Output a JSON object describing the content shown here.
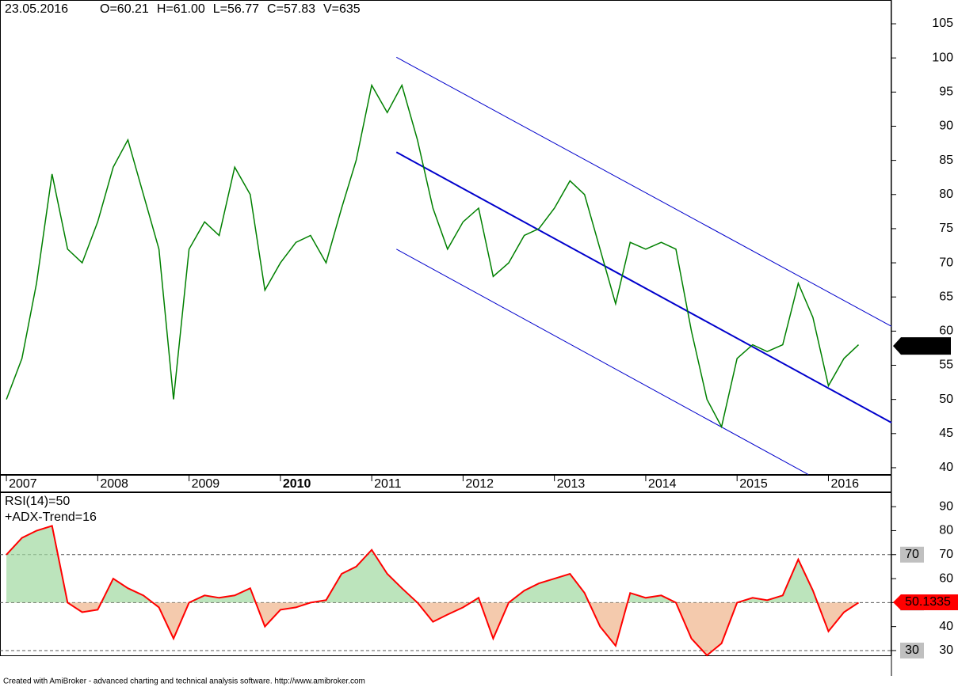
{
  "chart_data": [
    {
      "type": "line",
      "name": "price",
      "header": [
        "23.05.2016",
        "O=60.21",
        "H=61.00",
        "L=56.77",
        "C=57.83",
        "V=635"
      ],
      "x": [
        2007.0,
        2007.17,
        2007.33,
        2007.5,
        2007.67,
        2007.83,
        2008.0,
        2008.17,
        2008.33,
        2008.5,
        2008.67,
        2008.83,
        2009.0,
        2009.17,
        2009.33,
        2009.5,
        2009.67,
        2009.83,
        2010.0,
        2010.17,
        2010.33,
        2010.5,
        2010.67,
        2010.83,
        2011.0,
        2011.17,
        2011.33,
        2011.5,
        2011.67,
        2011.83,
        2012.0,
        2012.17,
        2012.33,
        2012.5,
        2012.67,
        2012.83,
        2013.0,
        2013.17,
        2013.33,
        2013.5,
        2013.67,
        2013.83,
        2014.0,
        2014.17,
        2014.33,
        2014.5,
        2014.67,
        2014.83,
        2015.0,
        2015.17,
        2015.33,
        2015.5,
        2015.67,
        2015.83,
        2016.0,
        2016.17,
        2016.33
      ],
      "series": [
        {
          "color": "#008000",
          "values": [
            50,
            56,
            67,
            83,
            72,
            70,
            76,
            84,
            88,
            80,
            72,
            50,
            72,
            76,
            74,
            84,
            80,
            66,
            70,
            73,
            74,
            70,
            78,
            85,
            96,
            92,
            96,
            88,
            78,
            72,
            76,
            78,
            68,
            70,
            74,
            75,
            78,
            82,
            80,
            72,
            64,
            73,
            72,
            73,
            72,
            60,
            50,
            46,
            56,
            58,
            57,
            58,
            67,
            62,
            52,
            56,
            58
          ]
        }
      ],
      "trend_lines": [
        {
          "color": "#0000cc",
          "x": [
            2011.27,
            2016.69
          ],
          "y": [
            100.1,
            60.7
          ]
        },
        {
          "color": "#0000cc",
          "x": [
            2011.27,
            2016.69
          ],
          "y": [
            86.2,
            46.6
          ]
        },
        {
          "color": "#0000cc",
          "x": [
            2011.27,
            2015.78
          ],
          "y": [
            72.0,
            39.0
          ]
        }
      ],
      "last_value": 57.83,
      "xlim": [
        2006.93,
        2016.69
      ],
      "xticks": [
        2007,
        2008,
        2009,
        2010,
        2011,
        2012,
        2013,
        2014,
        2015,
        2016
      ],
      "ylim": [
        38.95,
        108.48
      ],
      "yticks": [
        40,
        45,
        50,
        55,
        60,
        65,
        70,
        75,
        80,
        85,
        90,
        95,
        100,
        105
      ]
    },
    {
      "type": "line",
      "name": "rsi",
      "header": [
        "RSI(14)=50",
        "+ADX-Trend=16"
      ],
      "x": [
        2007.0,
        2007.17,
        2007.33,
        2007.5,
        2007.67,
        2007.83,
        2008.0,
        2008.17,
        2008.33,
        2008.5,
        2008.67,
        2008.83,
        2009.0,
        2009.17,
        2009.33,
        2009.5,
        2009.67,
        2009.83,
        2010.0,
        2010.17,
        2010.33,
        2010.5,
        2010.67,
        2010.83,
        2011.0,
        2011.17,
        2011.33,
        2011.5,
        2011.67,
        2011.83,
        2012.0,
        2012.17,
        2012.33,
        2012.5,
        2012.67,
        2012.83,
        2013.0,
        2013.17,
        2013.33,
        2013.5,
        2013.67,
        2013.83,
        2014.0,
        2014.17,
        2014.33,
        2014.5,
        2014.67,
        2014.83,
        2015.0,
        2015.17,
        2015.33,
        2015.5,
        2015.67,
        2015.83,
        2016.0,
        2016.17,
        2016.33
      ],
      "series": [
        {
          "color": "#ff0000",
          "values": [
            70,
            77,
            80,
            82,
            50,
            46,
            47,
            60,
            56,
            53,
            48,
            35,
            50,
            53,
            52,
            53,
            56,
            40,
            47,
            48,
            50,
            51,
            62,
            65,
            72,
            62,
            56,
            50,
            42,
            45,
            48,
            52,
            35,
            50,
            55,
            58,
            60,
            62,
            54,
            40,
            32,
            54,
            52,
            53,
            50,
            35,
            28,
            33,
            50,
            52,
            51,
            53,
            68,
            55,
            38,
            46,
            50
          ]
        }
      ],
      "levels": [
        30,
        50,
        70
      ],
      "last_value": 50.1335,
      "xlim": [
        2006.93,
        2016.69
      ],
      "ylim": [
        28,
        96
      ],
      "yticks": [
        30,
        40,
        50,
        60,
        70,
        80,
        90
      ]
    }
  ],
  "footer": "Created with AmiBroker - advanced charting and technical analysis software. http://www.amibroker.com"
}
